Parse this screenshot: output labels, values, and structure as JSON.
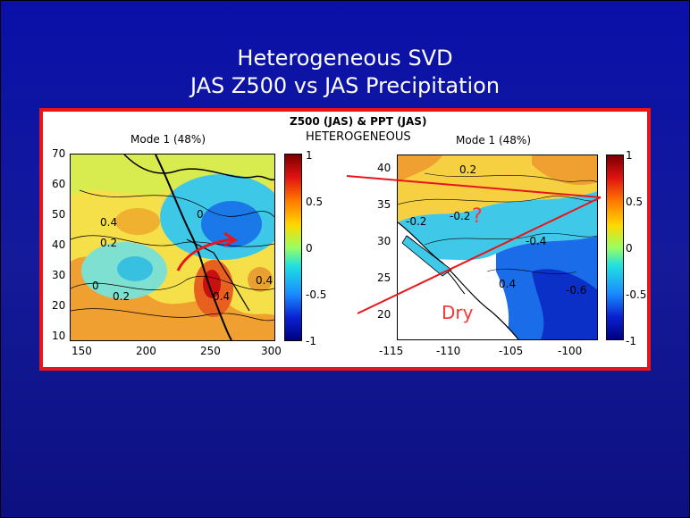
{
  "slide": {
    "title_line1": "Heterogeneous SVD",
    "title_line2": "JAS Z500 vs JAS Precipitation"
  },
  "figure": {
    "main_title": "Z500 (JAS) & PPT (JAS)",
    "subtitle": "HETEROGENEOUS",
    "left_panel": {
      "title": "Mode 1 (48%)",
      "y_ticks": [
        "70",
        "60",
        "50",
        "40",
        "30",
        "20",
        "10"
      ],
      "x_ticks": [
        "150",
        "200",
        "250",
        "300"
      ],
      "contour_labels": [
        "0.4",
        "0.2",
        "0",
        "0.2",
        "0.4",
        "0.4",
        "0"
      ],
      "colorbar_ticks": [
        "1",
        "0.5",
        "0",
        "-0.5",
        "-1"
      ]
    },
    "right_panel": {
      "title": "Mode 1 (48%)",
      "y_ticks": [
        "40",
        "35",
        "30",
        "25",
        "20"
      ],
      "x_ticks": [
        "-115",
        "-110",
        "-105",
        "-100"
      ],
      "contour_labels": [
        "0.2",
        "-0.2",
        "-0.2",
        "-0.4",
        "-0.6",
        "0.4"
      ],
      "colorbar_ticks": [
        "1",
        "0.5",
        "0",
        "-0.5",
        "-1"
      ]
    },
    "annotations": {
      "dry_label": "Dry",
      "question_mark": "?"
    },
    "colors": {
      "frame_border": "#e8151b",
      "annotation_red": "#ff3333",
      "background_blue": "#141a9a"
    }
  }
}
